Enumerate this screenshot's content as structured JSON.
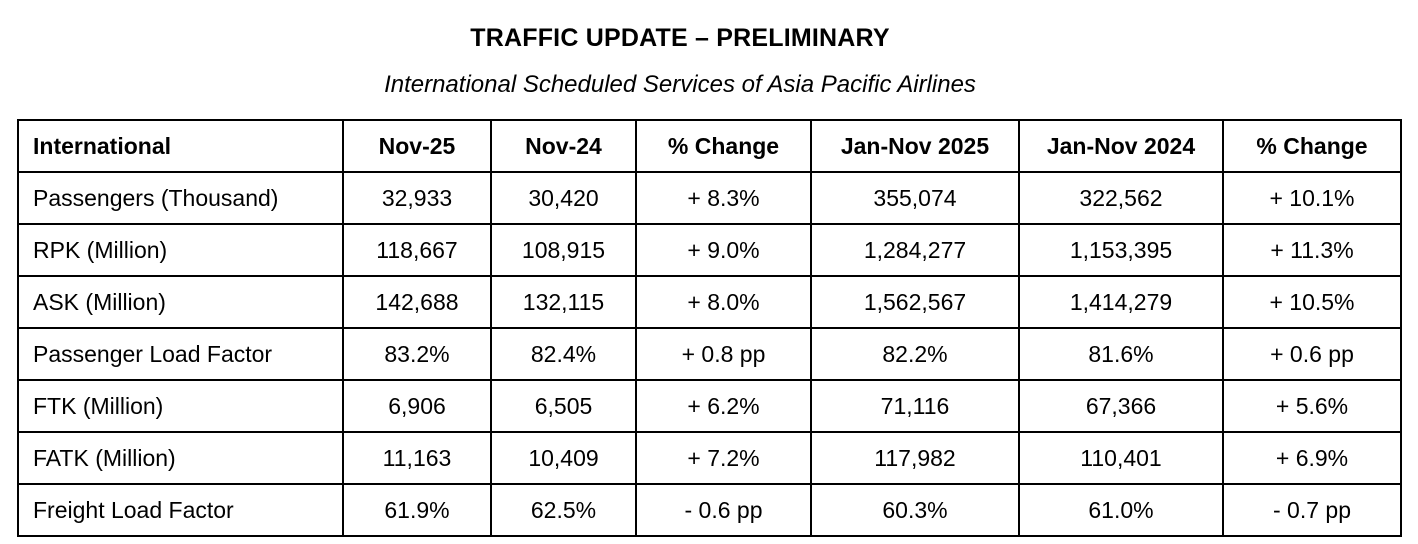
{
  "title": "TRAFFIC UPDATE – PRELIMINARY",
  "subtitle": "International Scheduled Services of Asia Pacific Airlines",
  "table": {
    "headers": [
      "International",
      "Nov-25",
      "Nov-24",
      "% Change",
      "Jan-Nov 2025",
      "Jan-Nov 2024",
      "% Change"
    ],
    "rows": [
      [
        "Passengers (Thousand)",
        "32,933",
        "30,420",
        "+ 8.3%",
        "355,074",
        "322,562",
        "+ 10.1%"
      ],
      [
        "RPK (Million)",
        "118,667",
        "108,915",
        "+ 9.0%",
        "1,284,277",
        "1,153,395",
        "+ 11.3%"
      ],
      [
        "ASK (Million)",
        "142,688",
        "132,115",
        "+ 8.0%",
        "1,562,567",
        "1,414,279",
        "+ 10.5%"
      ],
      [
        "Passenger Load Factor",
        "83.2%",
        "82.4%",
        "+ 0.8 pp",
        "82.2%",
        "81.6%",
        "+ 0.6 pp"
      ],
      [
        "FTK (Million)",
        "6,906",
        "6,505",
        "+ 6.2%",
        "71,116",
        "67,366",
        "+ 5.6%"
      ],
      [
        "FATK (Million)",
        "11,163",
        "10,409",
        "+ 7.2%",
        "117,982",
        "110,401",
        "+ 6.9%"
      ],
      [
        "Freight Load Factor",
        "61.9%",
        "62.5%",
        "- 0.6 pp",
        "60.3%",
        "61.0%",
        "- 0.7 pp"
      ]
    ]
  },
  "colors": {
    "border": "#000000",
    "text": "#000000",
    "background": "#ffffff"
  }
}
